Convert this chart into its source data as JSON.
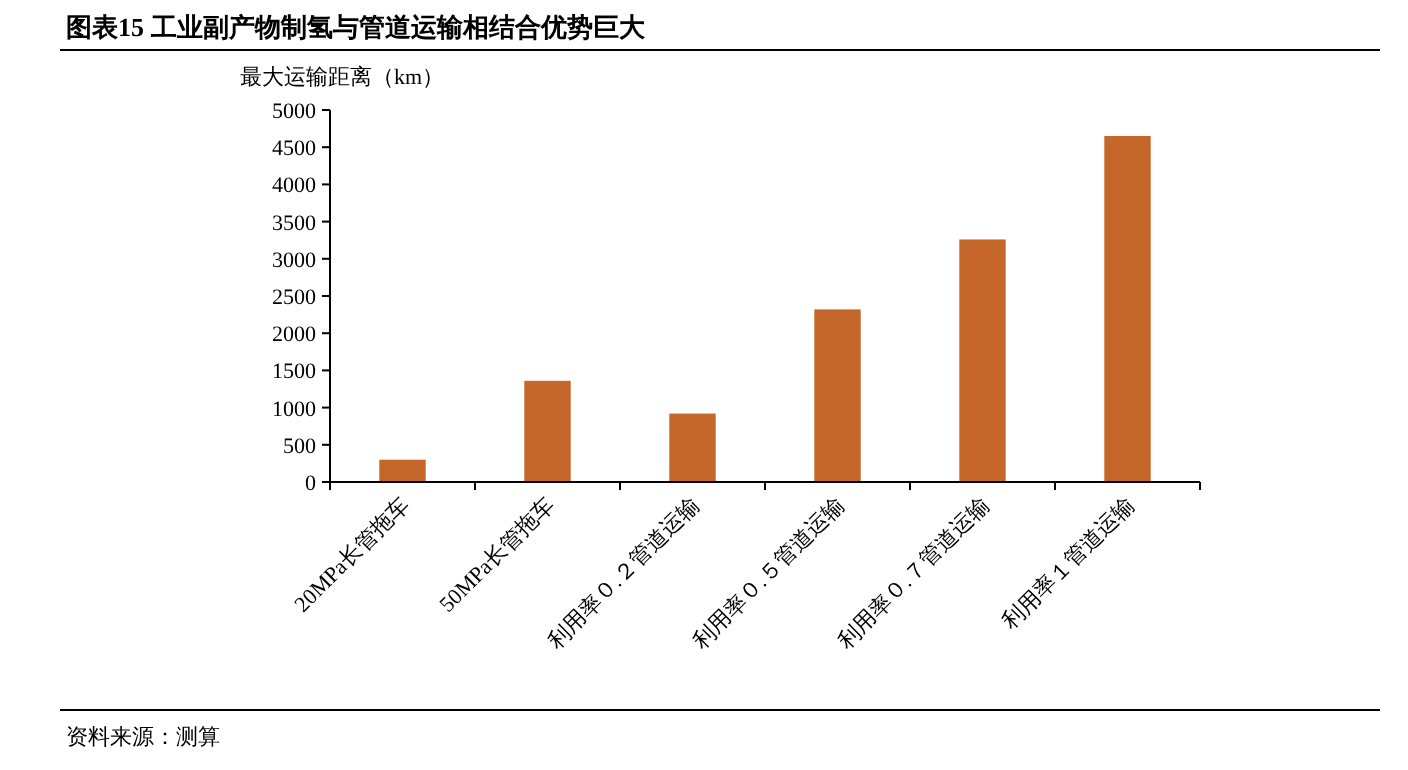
{
  "chart_data": {
    "type": "bar",
    "title": "图表15 工业副产物制氢与管道运输相结合优势巨大",
    "ylabel": "最大运输距离（km）",
    "categories": [
      "20MPa长管拖车",
      "50MPa长管拖车",
      "利用率０.２管道运输",
      "利用率０.５管道运输",
      "利用率０.７管道运输",
      "利用率１管道运输"
    ],
    "values": [
      300,
      1360,
      920,
      2320,
      3260,
      4650
    ],
    "color": "#c5672a",
    "ylim": [
      0,
      5000
    ],
    "yticks": [
      0,
      500,
      1000,
      1500,
      2000,
      2500,
      3000,
      3500,
      4000,
      4500,
      5000
    ],
    "grid": false,
    "annotations": [
      "资料来源：测算"
    ]
  }
}
